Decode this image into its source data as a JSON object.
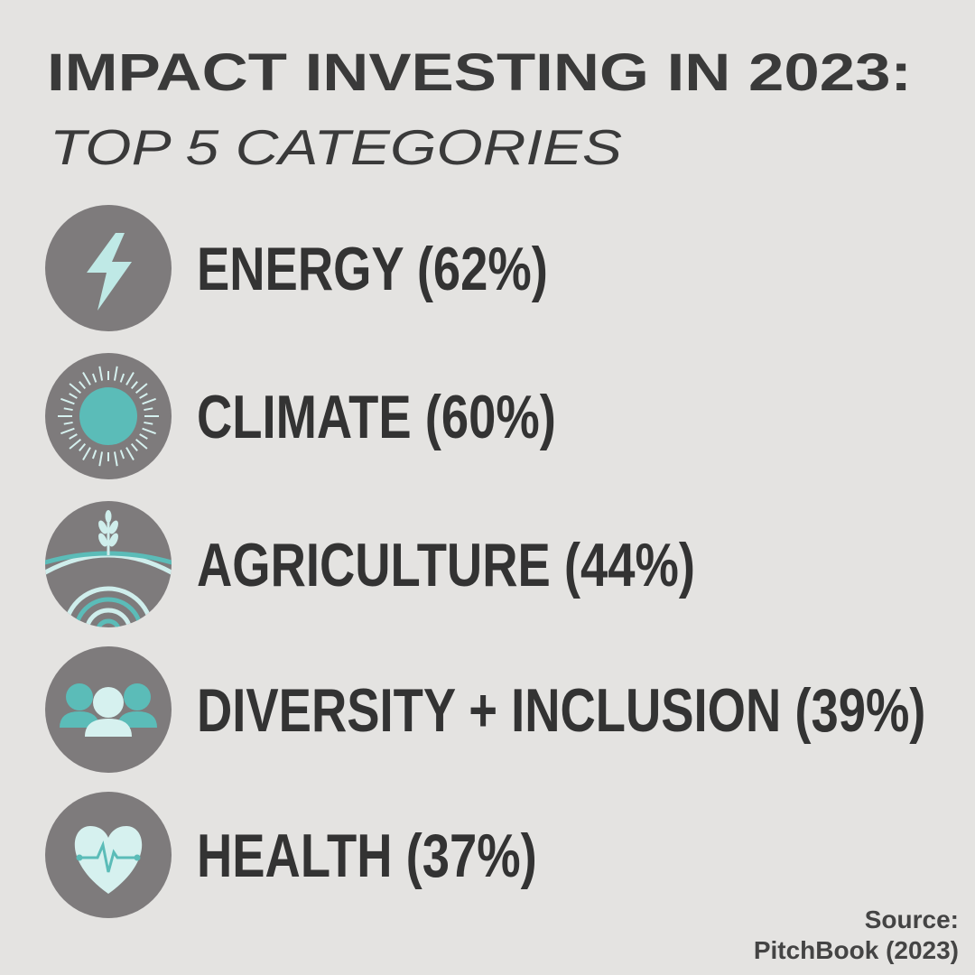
{
  "header": {
    "title": "IMPACT INVESTING IN 2023:",
    "subtitle": "TOP 5 CATEGORIES"
  },
  "items": [
    {
      "label": "ENERGY (62%)"
    },
    {
      "label": "CLIMATE (60%)"
    },
    {
      "label": "AGRICULTURE (44%)"
    },
    {
      "label": "DIVERSITY + INCLUSION (39%)"
    },
    {
      "label": "HEALTH (37%)"
    }
  ],
  "source": {
    "lines": [
      "Source:",
      "PitchBook (2023)"
    ]
  }
}
